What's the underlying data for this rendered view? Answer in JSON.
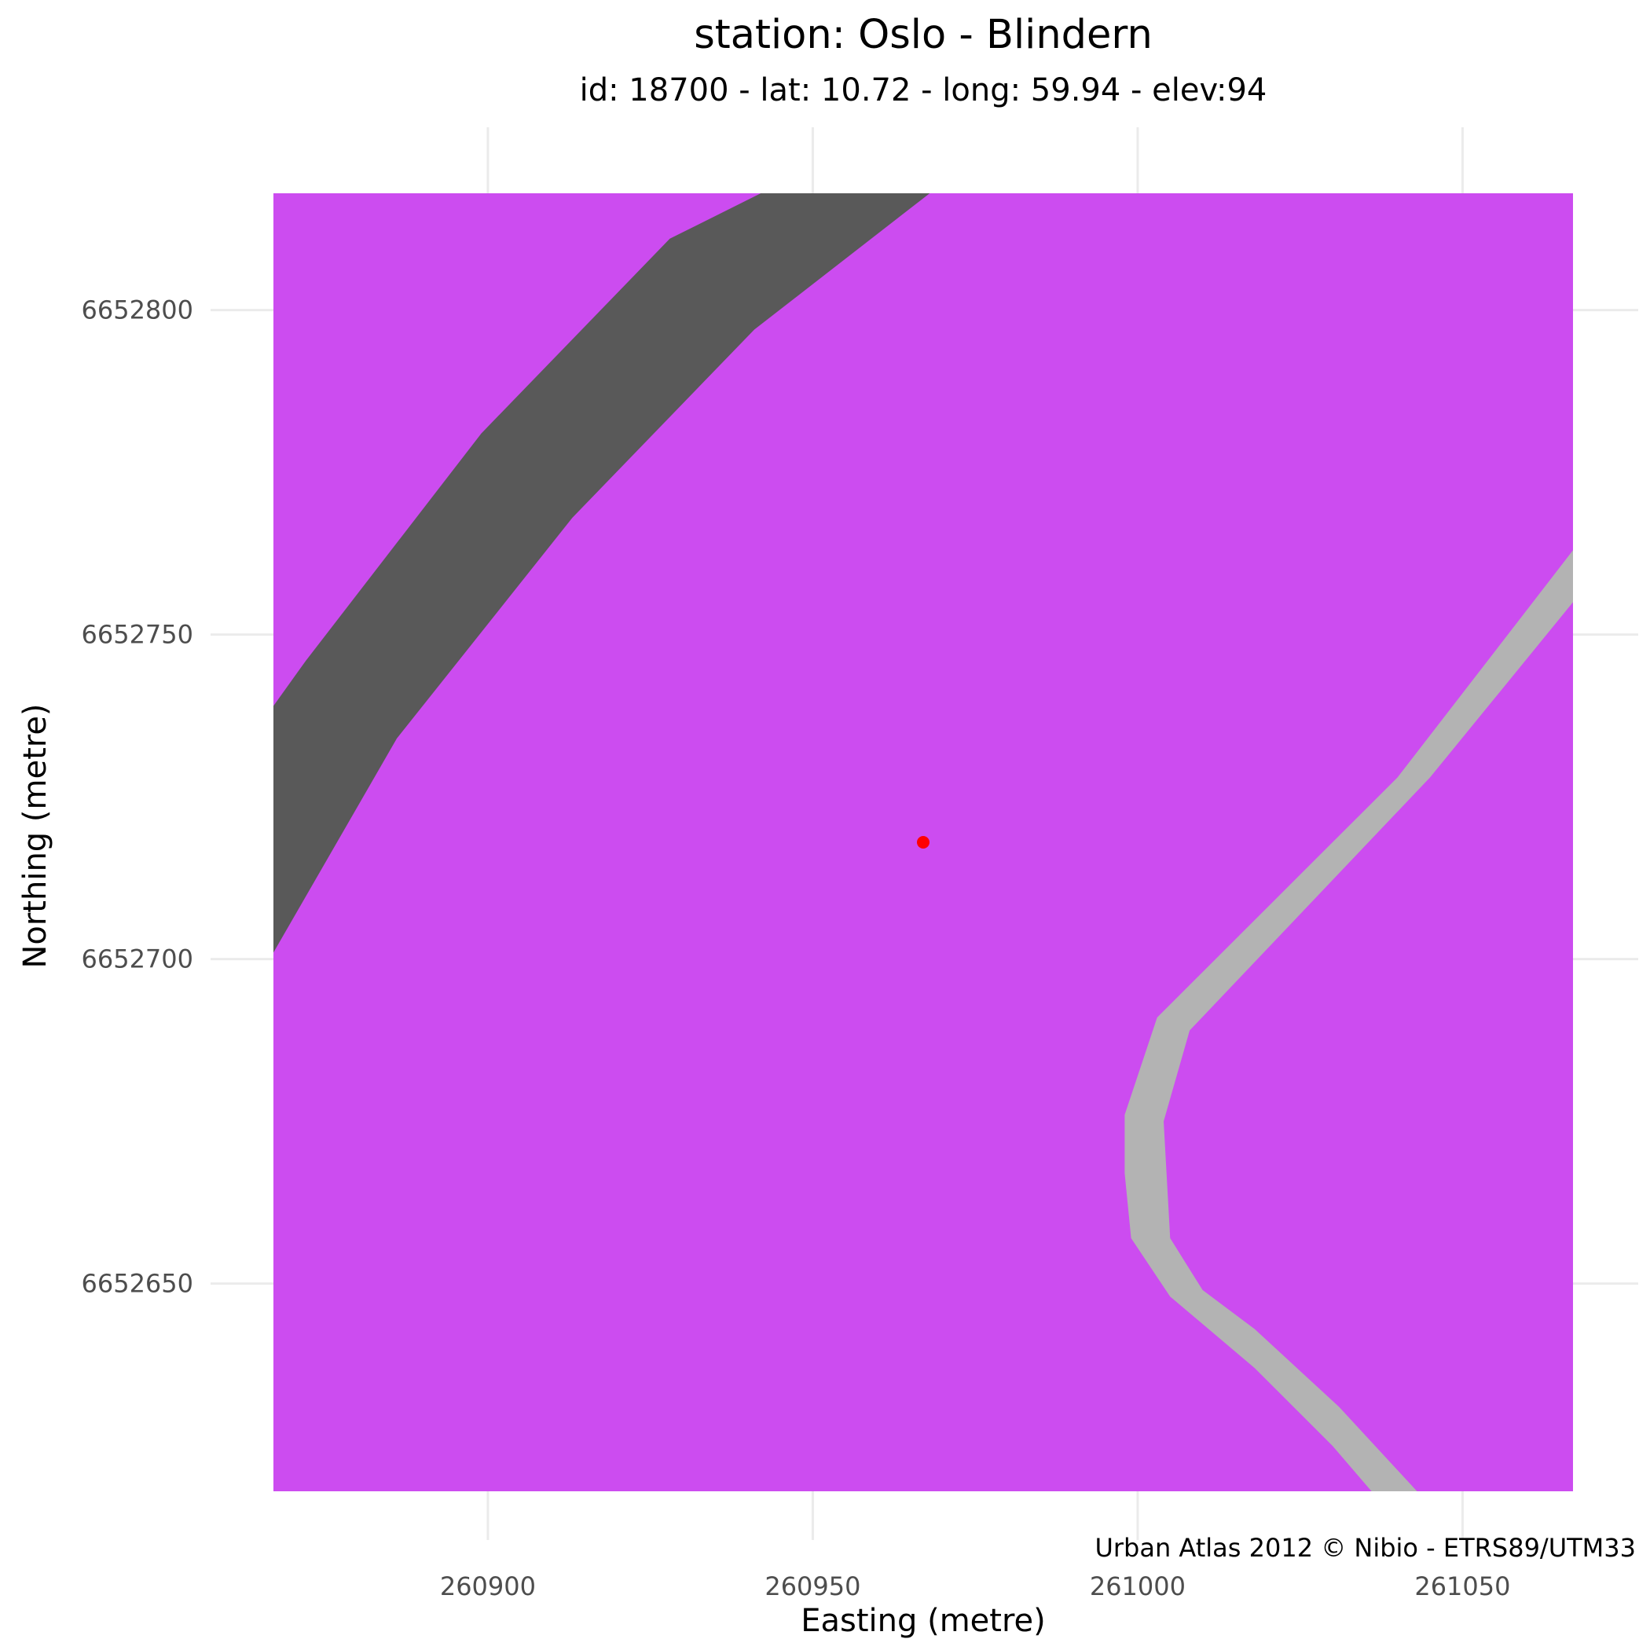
{
  "map": {
    "title": "station: Oslo - Blindern",
    "subtitle": "id: 18700 - lat: 10.72 - long: 59.94 - elev:94",
    "caption": "Urban Atlas 2012 © Nibio - ETRS89/UTM33",
    "x_axis": {
      "label": "Easting (metre)",
      "ticks": [
        {
          "value": 260900,
          "label": "260900"
        },
        {
          "value": 260950,
          "label": "260950"
        },
        {
          "value": 261000,
          "label": "261000"
        },
        {
          "value": 261050,
          "label": "261050"
        }
      ],
      "range": [
        260867,
        261067
      ]
    },
    "y_axis": {
      "label": "Northing (metre)",
      "ticks": [
        {
          "value": 6652650,
          "label": "6652650"
        },
        {
          "value": 6652700,
          "label": "6652700"
        },
        {
          "value": 6652750,
          "label": "6652750"
        },
        {
          "value": 6652800,
          "label": "6652800"
        }
      ],
      "range": [
        6652618,
        6652818
      ]
    },
    "background_landuse_color": "#cc4cf0",
    "layers": [
      {
        "kind": "major-road",
        "color": "#595959",
        "polygon": [
          [
            260867,
            6652701
          ],
          [
            260886,
            6652734
          ],
          [
            260913,
            6652768
          ],
          [
            260941,
            6652797
          ],
          [
            260968,
            6652818
          ],
          [
            260942,
            6652818
          ],
          [
            260928,
            6652811
          ],
          [
            260899,
            6652781
          ],
          [
            260872,
            6652746
          ],
          [
            260867,
            6652739
          ]
        ]
      },
      {
        "kind": "minor-road",
        "color": "#b3b3b3",
        "polygon": [
          [
            261067,
            6652763
          ],
          [
            261067,
            6652755
          ],
          [
            261045,
            6652728
          ],
          [
            261008,
            6652689
          ],
          [
            261004,
            6652675
          ],
          [
            261005,
            6652657
          ],
          [
            261010,
            6652649
          ],
          [
            261018,
            6652643
          ],
          [
            261031,
            6652631
          ],
          [
            261043,
            6652618
          ],
          [
            261036,
            6652618
          ],
          [
            261030,
            6652625
          ],
          [
            261018,
            6652637
          ],
          [
            261005,
            6652648
          ],
          [
            260999,
            6652657
          ],
          [
            260998,
            6652667
          ],
          [
            260998,
            6652676
          ],
          [
            261003,
            6652691
          ],
          [
            261040,
            6652728
          ]
        ]
      }
    ],
    "station_point": {
      "easting": 260967,
      "northing": 6652718,
      "color": "#ff0000"
    }
  }
}
